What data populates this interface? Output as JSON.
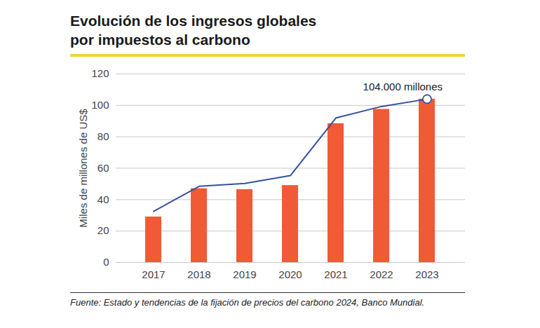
{
  "chart_data": {
    "type": "bar",
    "title": "Evolución de los ingresos globales por impuestos al carbono",
    "y_label": "Miles de millones de US$",
    "source": "Fuente: Estado y tendencias de la fijación de precios del carbono 2024, Banco Mundial.",
    "categories": [
      "2017",
      "2018",
      "2019",
      "2020",
      "2021",
      "2022",
      "2023"
    ],
    "series": [
      {
        "type": "bar",
        "color": "#f05a35",
        "values": [
          29,
          47,
          46.4,
          49,
          88.4,
          97.5,
          104
        ]
      },
      {
        "type": "line",
        "color": "#34519f",
        "values": [
          32.5,
          48.5,
          50.3,
          55.3,
          92,
          99.3,
          104
        ]
      }
    ],
    "annotations": [
      {
        "text": "104.000 millones",
        "x": "2023",
        "y": 104,
        "marker": "circle"
      }
    ],
    "ylim": [
      0,
      120
    ],
    "yticks": [
      0,
      20,
      40,
      60,
      80,
      100,
      120
    ],
    "grid": true
  }
}
